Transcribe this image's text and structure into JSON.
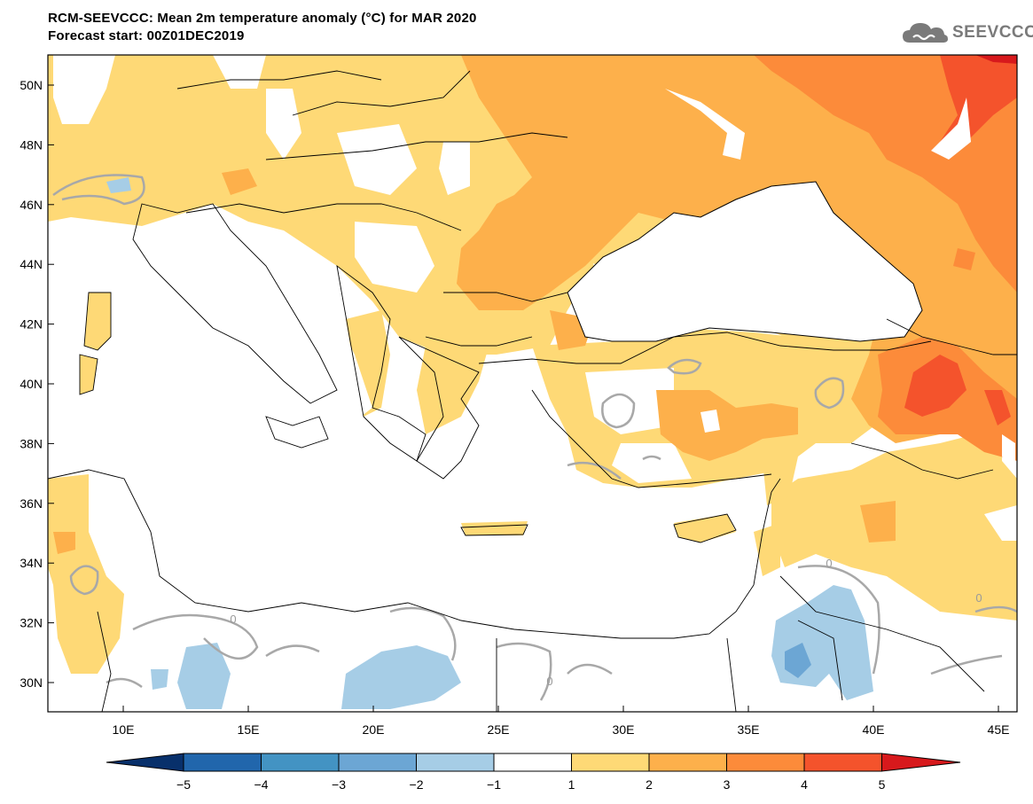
{
  "header": {
    "title_line1": "RCM-SEEVCCC: Mean 2m temperature anomaly (°C) for MAR 2020",
    "title_line2": "Forecast start: 00Z01DEC2019",
    "logo_text": "SEEVCCC"
  },
  "map": {
    "lat_labels": [
      "50N",
      "48N",
      "46N",
      "44N",
      "42N",
      "40N",
      "38N",
      "36N",
      "34N",
      "32N",
      "30N"
    ],
    "lon_labels": [
      "10E",
      "15E",
      "20E",
      "25E",
      "30E",
      "35E",
      "40E",
      "45E"
    ],
    "contour_labels": [
      "0",
      "0",
      "0",
      "0"
    ],
    "land_color": "#ffffff",
    "sea_color": "#ffffff"
  },
  "colorbar": {
    "ticks": [
      "−5",
      "−4",
      "−3",
      "−2",
      "−1",
      "1",
      "2",
      "3",
      "4",
      "5"
    ],
    "colors": [
      "#08306b",
      "#2166ac",
      "#4393c3",
      "#6ca6d4",
      "#a6cde6",
      "#ffffff",
      "#fed976",
      "#fdb04b",
      "#fc8b3a",
      "#f4532c",
      "#d7191c"
    ]
  }
}
